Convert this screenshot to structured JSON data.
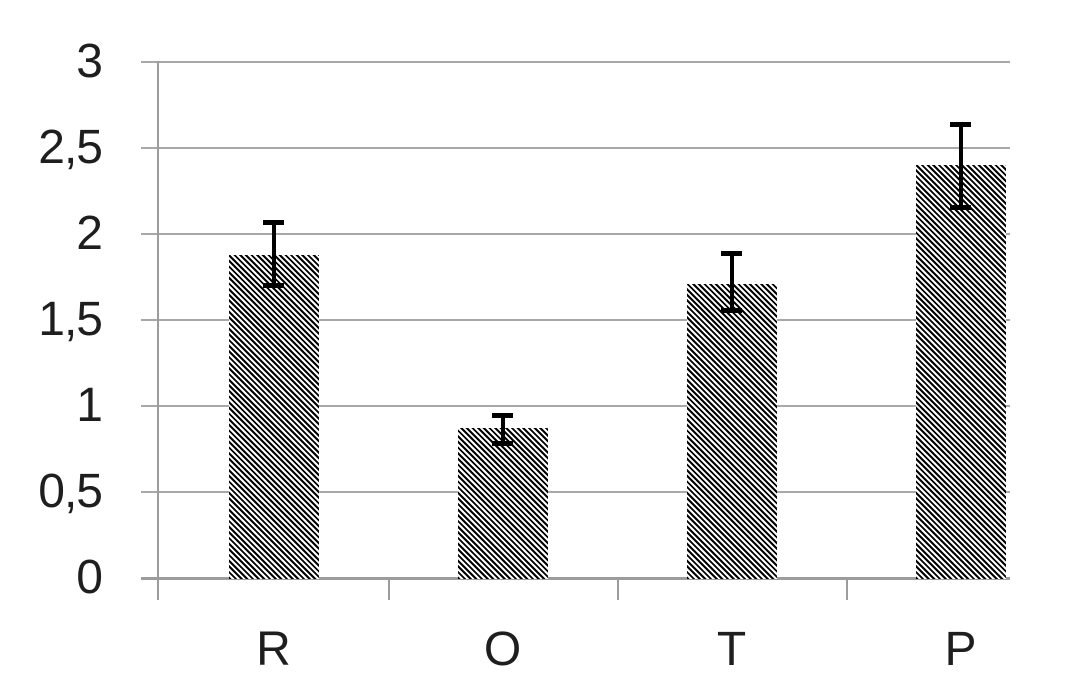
{
  "figure": {
    "background": "#ffffff",
    "description": "Bar chart with black diagonal-hatch bars and error bars, no title or legend"
  },
  "colors": {
    "background": "#ffffff",
    "gridline": "#a8a8a8",
    "axis": "#9c9c9c",
    "bar_hatch": "#000000",
    "bar_hatch_background": "#ffffff",
    "error_bar": "#000000",
    "label_text": "#1e1e1e"
  },
  "chart_data": {
    "type": "bar",
    "categories": [
      "R",
      "O",
      "T",
      "P"
    ],
    "values": [
      1.88,
      0.87,
      1.71,
      2.4
    ],
    "error_low": [
      1.7,
      0.78,
      1.55,
      2.15
    ],
    "error_high": [
      2.07,
      0.95,
      1.89,
      2.64
    ],
    "title": "",
    "xlabel": "",
    "ylabel": "",
    "ylim": [
      0,
      3
    ],
    "yticks": [
      0,
      0.5,
      1,
      1.5,
      2,
      2.5,
      3
    ],
    "ytick_labels": [
      "0",
      "0,5",
      "1",
      "1,5",
      "2",
      "2,5",
      "3"
    ],
    "decimal_separator": ",",
    "grid": true,
    "legend": false,
    "legend_position": "none",
    "bar_style": "diagonal-hatch"
  }
}
